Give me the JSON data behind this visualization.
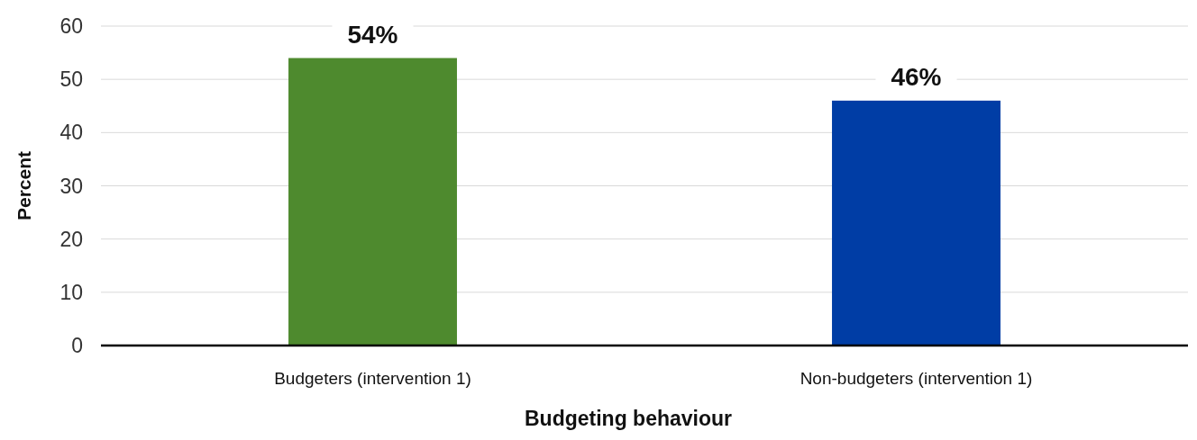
{
  "chart_data": {
    "type": "bar",
    "xlabel": "Budgeting behaviour",
    "ylabel": "Percent",
    "categories": [
      "Budgeters (intervention 1)",
      "Non-budgeters (intervention 1)"
    ],
    "values": [
      54,
      46
    ],
    "colors": [
      "#4e8a2e",
      "#003da5"
    ],
    "value_labels": [
      "54%",
      "46%"
    ],
    "ylim": [
      0,
      60
    ],
    "yticks": [
      0,
      10,
      20,
      30,
      40,
      50,
      60
    ],
    "grid": "y"
  }
}
